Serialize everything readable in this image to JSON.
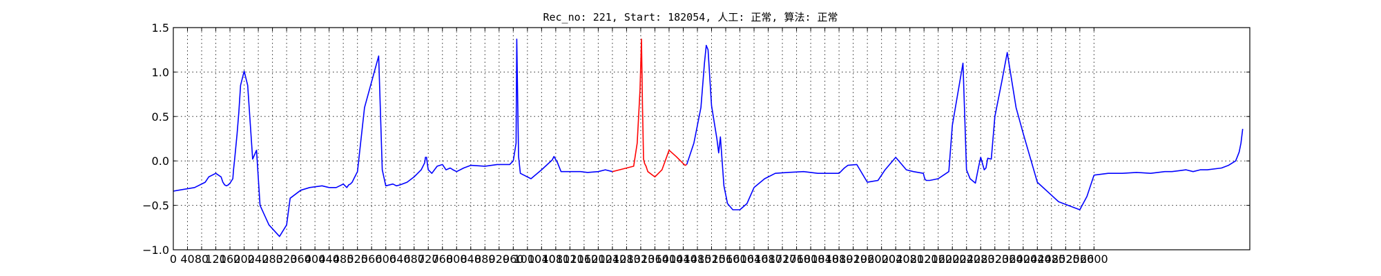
{
  "chart_data": {
    "type": "line",
    "title": "Rec_no: 221, Start: 182054, 人工: 正常, 算法: 正常",
    "xlabel": "",
    "ylabel": "",
    "xlim": [
      0,
      3040
    ],
    "ylim": [
      -1.0,
      1.5
    ],
    "grid": true,
    "legend": "none",
    "yticks": [
      -1.0,
      -0.5,
      0.0,
      0.5,
      1.0,
      1.5
    ],
    "ytick_labels": [
      "−1.0",
      "−0.5",
      "0.0",
      "0.5",
      "1.0",
      "1.5"
    ],
    "xticks": [
      0,
      40,
      80,
      120,
      160,
      200,
      240,
      280,
      320,
      360,
      400,
      440,
      480,
      520,
      560,
      600,
      640,
      680,
      720,
      760,
      800,
      840,
      880,
      920,
      960,
      1000,
      1040,
      1080,
      1120,
      1160,
      1200,
      1240,
      1280,
      1320,
      1360,
      1400,
      1440,
      1480,
      1520,
      1560,
      1600,
      1640,
      1680,
      1720,
      1760,
      1800,
      1840,
      1880,
      1920,
      1960,
      2000,
      2040,
      2080,
      2120,
      2160,
      2200,
      2240,
      2280,
      2320,
      2360,
      2400,
      2440,
      2480,
      2520,
      2560,
      2600
    ],
    "series": [
      {
        "color": "#0000ff",
        "x": [
          0,
          60,
          90,
          100,
          120,
          135,
          140,
          145,
          150,
          155,
          160,
          168,
          170,
          174,
          178,
          180,
          185,
          190,
          200,
          210,
          224,
          235,
          245,
          270,
          300,
          320,
          330,
          360,
          385,
          420,
          440,
          460,
          470,
          480,
          490,
          495,
          500,
          505,
          510,
          520,
          540,
          580,
          590,
          600,
          620,
          630,
          640,
          660,
          680,
          700,
          710,
          712,
          715,
          717,
          720,
          730,
          745,
          760,
          770,
          782,
          790,
          800,
          820,
          840,
          880,
          915,
          950,
          960,
          968,
          970,
          975,
          980,
          990,
          1010,
          1040,
          1070,
          1075,
          1085,
          1095,
          1105,
          1120,
          1150,
          1170,
          1200,
          1220,
          1240
        ],
        "y": [
          -0.34,
          -0.3,
          -0.24,
          -0.18,
          -0.14,
          -0.18,
          -0.24,
          -0.27,
          -0.28,
          -0.27,
          -0.25,
          -0.2,
          -0.1,
          0.05,
          0.22,
          0.3,
          0.55,
          0.85,
          1.01,
          0.85,
          0.02,
          0.12,
          -0.5,
          -0.72,
          -0.85,
          -0.72,
          -0.42,
          -0.33,
          -0.3,
          -0.28,
          -0.3,
          -0.3,
          -0.28,
          -0.26,
          -0.3,
          -0.27,
          -0.26,
          -0.24,
          -0.2,
          -0.12,
          0.6,
          1.18,
          -0.1,
          -0.28,
          -0.26,
          -0.28,
          -0.27,
          -0.24,
          -0.18,
          -0.1,
          -0.02,
          0.04,
          0.04,
          -0.02,
          -0.1,
          -0.14,
          -0.06,
          -0.04,
          -0.1,
          -0.08,
          -0.1,
          -0.12,
          -0.08,
          -0.05,
          -0.06,
          -0.04,
          -0.04,
          0.0,
          0.2,
          1.37,
          0.05,
          -0.14,
          -0.16,
          -0.2,
          -0.1,
          0.01,
          0.05,
          -0.02,
          -0.12,
          -0.12,
          -0.12,
          -0.12,
          -0.13,
          -0.12,
          -0.1,
          -0.12
        ]
      },
      {
        "color": "#ff0000",
        "x": [
          1240,
          1300,
          1310,
          1318,
          1322,
          1325,
          1328,
          1331,
          1335,
          1340,
          1360,
          1380,
          1400,
          1420,
          1445,
          1450
        ],
        "y": [
          -0.12,
          -0.06,
          0.2,
          0.8,
          1.37,
          0.6,
          0.02,
          -0.03,
          -0.06,
          -0.12,
          -0.18,
          -0.1,
          0.12,
          0.05,
          -0.05,
          -0.04
        ]
      },
      {
        "color": "#0000ff",
        "x": [
          1450,
          1470,
          1490,
          1500,
          1505,
          1510,
          1520,
          1535,
          1540,
          1545,
          1555,
          1565,
          1580,
          1600,
          1620,
          1640,
          1670,
          1700,
          1735,
          1780,
          1820,
          1850,
          1875,
          1880,
          1885,
          1890,
          1895,
          1905,
          1930,
          1960,
          1990,
          2010,
          2040,
          2070,
          2090,
          2118,
          2122,
          2126,
          2132,
          2136,
          2160,
          2190,
          2200,
          2230,
          2240,
          2250,
          2265,
          2270,
          2275,
          2280,
          2290,
          2295,
          2300,
          2310,
          2320,
          2340,
          2355,
          2380,
          2400,
          2440,
          2500,
          2560,
          2580,
          2600
        ],
        "y": [
          -0.04,
          0.2,
          0.6,
          1.1,
          1.3,
          1.25,
          0.62,
          0.25,
          0.09,
          0.27,
          -0.28,
          -0.48,
          -0.55,
          -0.55,
          -0.48,
          -0.3,
          -0.2,
          -0.14,
          -0.13,
          -0.12,
          -0.14,
          -0.14,
          -0.14,
          -0.14,
          -0.12,
          -0.1,
          -0.08,
          -0.05,
          -0.04,
          -0.24,
          -0.22,
          -0.1,
          0.04,
          -0.1,
          -0.12,
          -0.14,
          -0.2,
          -0.22,
          -0.22,
          -0.22,
          -0.2,
          -0.12,
          0.4,
          1.1,
          -0.1,
          -0.2,
          -0.25,
          -0.15,
          -0.05,
          0.04,
          -0.1,
          -0.08,
          0.03,
          0.02,
          0.5,
          0.9,
          1.22,
          0.6,
          0.31,
          -0.24,
          -0.46,
          -0.55,
          -0.4,
          -0.16
        ]
      },
      {
        "color": "#0000ff",
        "x": [
          2600,
          2640,
          2680,
          2720,
          2760,
          2800,
          2820,
          2840,
          2860,
          2880,
          2900,
          2920,
          2960,
          2980,
          3000,
          3005,
          3010,
          3015,
          3020
        ],
        "y": [
          -0.16,
          -0.14,
          -0.14,
          -0.13,
          -0.14,
          -0.12,
          -0.12,
          -0.11,
          -0.1,
          -0.12,
          -0.1,
          -0.1,
          -0.08,
          -0.05,
          0.0,
          0.05,
          0.1,
          0.2,
          0.36
        ]
      }
    ]
  }
}
